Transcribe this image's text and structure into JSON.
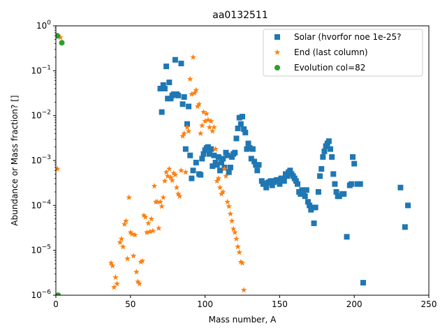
{
  "chart_data": {
    "type": "scatter",
    "title": "aa0132511",
    "xlabel": "Mass number, A",
    "ylabel": "Abundance or Mass fraction? []",
    "xlim": [
      0,
      250
    ],
    "ylim": [
      1e-06,
      1
    ],
    "yscale": "log",
    "x_ticks": [
      "0",
      "50",
      "100",
      "150",
      "200",
      "250"
    ],
    "y_ticks": [
      {
        "base": "10",
        "exp": "−6"
      },
      {
        "base": "10",
        "exp": "−5"
      },
      {
        "base": "10",
        "exp": "−4"
      },
      {
        "base": "10",
        "exp": "−3"
      },
      {
        "base": "10",
        "exp": "−2"
      },
      {
        "base": "10",
        "exp": "−1"
      },
      {
        "base": "10",
        "exp": "0"
      }
    ],
    "legend_position": "top-right",
    "series": [
      {
        "name": "Solar (hvorfor noe 1e-25?",
        "marker": "square",
        "color": "#1f77b4",
        "points": [
          [
            70,
            0.04
          ],
          [
            71,
            0.012
          ],
          [
            72,
            0.048
          ],
          [
            73,
            0.04
          ],
          [
            74,
            0.125
          ],
          [
            75,
            0.024
          ],
          [
            76,
            0.055
          ],
          [
            77,
            0.024
          ],
          [
            78,
            0.028
          ],
          [
            79,
            0.03
          ],
          [
            80,
            0.175
          ],
          [
            81,
            0.03
          ],
          [
            82,
            0.028
          ],
          [
            84,
            0.145
          ],
          [
            85,
            0.018
          ],
          [
            86,
            0.026
          ],
          [
            87,
            0.0018
          ],
          [
            88,
            0.0065
          ],
          [
            89,
            0.016
          ],
          [
            90,
            0.0013
          ],
          [
            91,
            0.0004
          ],
          [
            92,
            0.0006
          ],
          [
            94,
            0.0009
          ],
          [
            96,
            0.0005
          ],
          [
            97,
            0.00048
          ],
          [
            98,
            0.0011
          ],
          [
            99,
            0.0014
          ],
          [
            100,
            0.0017
          ],
          [
            101,
            0.0019
          ],
          [
            102,
            0.002
          ],
          [
            103,
            0.0014
          ],
          [
            104,
            0.0018
          ],
          [
            105,
            0.00075
          ],
          [
            106,
            0.0013
          ],
          [
            107,
            0.0009
          ],
          [
            108,
            0.0008
          ],
          [
            109,
            0.0012
          ],
          [
            110,
            0.0006
          ],
          [
            111,
            0.0009
          ],
          [
            112,
            0.0011
          ],
          [
            113,
            0.0007
          ],
          [
            114,
            0.0015
          ],
          [
            115,
            0.0013
          ],
          [
            116,
            0.00055
          ],
          [
            117,
            0.0007
          ],
          [
            118,
            0.0012
          ],
          [
            119,
            0.0014
          ],
          [
            120,
            0.0015
          ],
          [
            121,
            0.0031
          ],
          [
            122,
            0.0052
          ],
          [
            123,
            0.009
          ],
          [
            124,
            0.0065
          ],
          [
            125,
            0.0095
          ],
          [
            126,
            0.005
          ],
          [
            127,
            0.0042
          ],
          [
            128,
            0.0018
          ],
          [
            129,
            0.0024
          ],
          [
            130,
            0.0019
          ],
          [
            131,
            0.0011
          ],
          [
            132,
            0.0018
          ],
          [
            133,
            0.00095
          ],
          [
            134,
            0.0008
          ],
          [
            135,
            0.0006
          ],
          [
            136,
            0.0008
          ],
          [
            138,
            0.00035
          ],
          [
            139,
            0.0003
          ],
          [
            140,
            0.0003
          ],
          [
            141,
            0.00025
          ],
          [
            142,
            0.00032
          ],
          [
            143,
            0.00033
          ],
          [
            144,
            0.00035
          ],
          [
            145,
            0.00028
          ],
          [
            146,
            0.00033
          ],
          [
            147,
            0.00035
          ],
          [
            148,
            0.00037
          ],
          [
            150,
            0.0003
          ],
          [
            151,
            0.0004
          ],
          [
            152,
            0.0004
          ],
          [
            153,
            0.00035
          ],
          [
            154,
            0.0005
          ],
          [
            155,
            0.00045
          ],
          [
            156,
            0.00055
          ],
          [
            157,
            0.0006
          ],
          [
            158,
            0.0005
          ],
          [
            159,
            0.00045
          ],
          [
            160,
            0.0004
          ],
          [
            161,
            0.00035
          ],
          [
            162,
            0.0003
          ],
          [
            163,
            0.0002
          ],
          [
            164,
            0.00018
          ],
          [
            165,
            0.00022
          ],
          [
            166,
            0.00018
          ],
          [
            167,
            0.00016
          ],
          [
            168,
            0.00022
          ],
          [
            169,
            0.00012
          ],
          [
            170,
            0.0001
          ],
          [
            171,
            8e-05
          ],
          [
            172,
            9e-05
          ],
          [
            173,
            4e-05
          ],
          [
            174,
            9e-05
          ],
          [
            176,
            0.0002
          ],
          [
            177,
            0.00045
          ],
          [
            178,
            0.00065
          ],
          [
            179,
            0.0012
          ],
          [
            180,
            0.0016
          ],
          [
            181,
            0.0021
          ],
          [
            182,
            0.0024
          ],
          [
            183,
            0.0027
          ],
          [
            184,
            0.0018
          ],
          [
            185,
            0.0012
          ],
          [
            186,
            0.0005
          ],
          [
            187,
            0.0003
          ],
          [
            188,
            0.0002
          ],
          [
            189,
            0.00016
          ],
          [
            190,
            0.00016
          ],
          [
            192,
            0.00018
          ],
          [
            193,
            0.00018
          ],
          [
            195,
            2e-05
          ],
          [
            197,
            0.00028
          ],
          [
            198,
            0.0003
          ],
          [
            199,
            0.0012
          ],
          [
            200,
            0.00085
          ],
          [
            202,
            0.0003
          ],
          [
            204,
            0.0003
          ],
          [
            206,
            1.9e-06
          ],
          [
            231,
            0.00025
          ],
          [
            234,
            3.3e-05
          ],
          [
            236,
            0.0001
          ]
        ]
      },
      {
        "name": "End (last column)",
        "marker": "star",
        "color": "#ff7f0e",
        "points": [
          [
            1,
            0.00065
          ],
          [
            3,
            0.55
          ],
          [
            37,
            5.2e-06
          ],
          [
            38,
            4.5e-06
          ],
          [
            39,
            1.5e-06
          ],
          [
            40,
            2.5e-06
          ],
          [
            41,
            1.8e-06
          ],
          [
            43,
            1.5e-05
          ],
          [
            44,
            1.8e-05
          ],
          [
            45,
            1.2e-05
          ],
          [
            46,
            3.8e-05
          ],
          [
            47,
            4.5e-05
          ],
          [
            48,
            6.5e-06
          ],
          [
            49,
            0.00015
          ],
          [
            50,
            2.5e-05
          ],
          [
            51,
            2.3e-05
          ],
          [
            52,
            7.5e-06
          ],
          [
            53,
            2.2e-05
          ],
          [
            54,
            3.3e-06
          ],
          [
            55,
            2e-06
          ],
          [
            56,
            1.8e-06
          ],
          [
            57,
            5.5e-06
          ],
          [
            58,
            5.8e-06
          ],
          [
            59,
            6e-05
          ],
          [
            60,
            5.5e-05
          ],
          [
            61,
            2.5e-05
          ],
          [
            62,
            4e-05
          ],
          [
            63,
            2.6e-05
          ],
          [
            64,
            5e-05
          ],
          [
            65,
            2.7e-05
          ],
          [
            66,
            0.00027
          ],
          [
            67,
            0.00012
          ],
          [
            68,
            0.00012
          ],
          [
            69,
            3.1e-05
          ],
          [
            70,
            0.00012
          ],
          [
            71,
            9.5e-05
          ],
          [
            72,
            0.00015
          ],
          [
            73,
            0.00035
          ],
          [
            74,
            0.00055
          ],
          [
            75,
            0.00045
          ],
          [
            76,
            0.00065
          ],
          [
            77,
            0.00042
          ],
          [
            78,
            0.00036
          ],
          [
            79,
            0.00052
          ],
          [
            80,
            0.00048
          ],
          [
            81,
            0.00025
          ],
          [
            82,
            0.00018
          ],
          [
            83,
            0.00016
          ],
          [
            84,
            0.0006
          ],
          [
            85,
            0.0035
          ],
          [
            86,
            0.004
          ],
          [
            87,
            0.00055
          ],
          [
            88,
            0.0055
          ],
          [
            89,
            0.0045
          ],
          [
            90,
            0.065
          ],
          [
            91,
            0.03
          ],
          [
            92,
            0.2
          ],
          [
            93,
            0.032
          ],
          [
            94,
            0.037
          ],
          [
            95,
            0.016
          ],
          [
            96,
            0.018
          ],
          [
            97,
            0.004
          ],
          [
            98,
            0.006
          ],
          [
            99,
            0.012
          ],
          [
            100,
            0.0075
          ],
          [
            101,
            0.011
          ],
          [
            102,
            0.008
          ],
          [
            103,
            0.0055
          ],
          [
            104,
            0.0075
          ],
          [
            105,
            0.0045
          ],
          [
            106,
            0.0055
          ],
          [
            107,
            0.0018
          ],
          [
            108,
            0.00035
          ],
          [
            109,
            0.0004
          ],
          [
            110,
            0.00025
          ],
          [
            111,
            0.00018
          ],
          [
            112,
            0.0002
          ],
          [
            113,
            0.00065
          ],
          [
            114,
            0.00045
          ],
          [
            115,
            0.00012
          ],
          [
            116,
            9.5e-05
          ],
          [
            117,
            6.5e-05
          ],
          [
            118,
            4.5e-05
          ],
          [
            119,
            3e-05
          ],
          [
            120,
            2.5e-05
          ],
          [
            121,
            1.8e-05
          ],
          [
            122,
            1.2e-05
          ],
          [
            123,
            9e-06
          ],
          [
            124,
            5.5e-06
          ],
          [
            125,
            5.2e-06
          ],
          [
            126,
            1.3e-06
          ]
        ]
      },
      {
        "name": "Evolution col=82",
        "marker": "circle",
        "color": "#2ca02c",
        "points": [
          [
            1,
            0.6
          ],
          [
            4,
            0.42
          ],
          [
            1.5,
            1e-06
          ]
        ]
      }
    ]
  }
}
